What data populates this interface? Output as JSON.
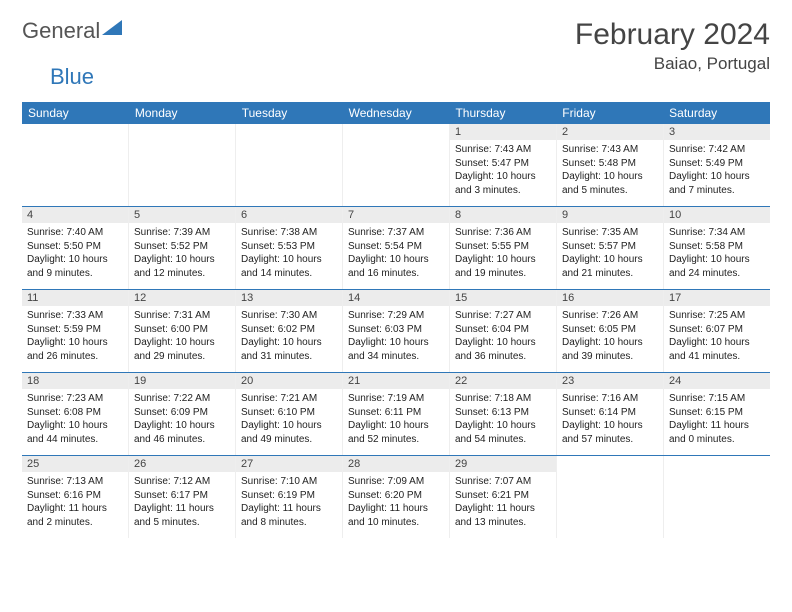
{
  "logo": {
    "text1": "General",
    "text2": "Blue",
    "brand_color": "#2f77b8"
  },
  "title": "February 2024",
  "location": "Baiao, Portugal",
  "day_names": [
    "Sunday",
    "Monday",
    "Tuesday",
    "Wednesday",
    "Thursday",
    "Friday",
    "Saturday"
  ],
  "colors": {
    "header_bg": "#2f77b8",
    "daynum_bg": "#ececec",
    "week_border": "#2f77b8"
  },
  "weeks": [
    [
      {
        "empty": true
      },
      {
        "empty": true
      },
      {
        "empty": true
      },
      {
        "empty": true
      },
      {
        "day": "1",
        "sunrise": "Sunrise: 7:43 AM",
        "sunset": "Sunset: 5:47 PM",
        "daylight": "Daylight: 10 hours and 3 minutes."
      },
      {
        "day": "2",
        "sunrise": "Sunrise: 7:43 AM",
        "sunset": "Sunset: 5:48 PM",
        "daylight": "Daylight: 10 hours and 5 minutes."
      },
      {
        "day": "3",
        "sunrise": "Sunrise: 7:42 AM",
        "sunset": "Sunset: 5:49 PM",
        "daylight": "Daylight: 10 hours and 7 minutes."
      }
    ],
    [
      {
        "day": "4",
        "sunrise": "Sunrise: 7:40 AM",
        "sunset": "Sunset: 5:50 PM",
        "daylight": "Daylight: 10 hours and 9 minutes."
      },
      {
        "day": "5",
        "sunrise": "Sunrise: 7:39 AM",
        "sunset": "Sunset: 5:52 PM",
        "daylight": "Daylight: 10 hours and 12 minutes."
      },
      {
        "day": "6",
        "sunrise": "Sunrise: 7:38 AM",
        "sunset": "Sunset: 5:53 PM",
        "daylight": "Daylight: 10 hours and 14 minutes."
      },
      {
        "day": "7",
        "sunrise": "Sunrise: 7:37 AM",
        "sunset": "Sunset: 5:54 PM",
        "daylight": "Daylight: 10 hours and 16 minutes."
      },
      {
        "day": "8",
        "sunrise": "Sunrise: 7:36 AM",
        "sunset": "Sunset: 5:55 PM",
        "daylight": "Daylight: 10 hours and 19 minutes."
      },
      {
        "day": "9",
        "sunrise": "Sunrise: 7:35 AM",
        "sunset": "Sunset: 5:57 PM",
        "daylight": "Daylight: 10 hours and 21 minutes."
      },
      {
        "day": "10",
        "sunrise": "Sunrise: 7:34 AM",
        "sunset": "Sunset: 5:58 PM",
        "daylight": "Daylight: 10 hours and 24 minutes."
      }
    ],
    [
      {
        "day": "11",
        "sunrise": "Sunrise: 7:33 AM",
        "sunset": "Sunset: 5:59 PM",
        "daylight": "Daylight: 10 hours and 26 minutes."
      },
      {
        "day": "12",
        "sunrise": "Sunrise: 7:31 AM",
        "sunset": "Sunset: 6:00 PM",
        "daylight": "Daylight: 10 hours and 29 minutes."
      },
      {
        "day": "13",
        "sunrise": "Sunrise: 7:30 AM",
        "sunset": "Sunset: 6:02 PM",
        "daylight": "Daylight: 10 hours and 31 minutes."
      },
      {
        "day": "14",
        "sunrise": "Sunrise: 7:29 AM",
        "sunset": "Sunset: 6:03 PM",
        "daylight": "Daylight: 10 hours and 34 minutes."
      },
      {
        "day": "15",
        "sunrise": "Sunrise: 7:27 AM",
        "sunset": "Sunset: 6:04 PM",
        "daylight": "Daylight: 10 hours and 36 minutes."
      },
      {
        "day": "16",
        "sunrise": "Sunrise: 7:26 AM",
        "sunset": "Sunset: 6:05 PM",
        "daylight": "Daylight: 10 hours and 39 minutes."
      },
      {
        "day": "17",
        "sunrise": "Sunrise: 7:25 AM",
        "sunset": "Sunset: 6:07 PM",
        "daylight": "Daylight: 10 hours and 41 minutes."
      }
    ],
    [
      {
        "day": "18",
        "sunrise": "Sunrise: 7:23 AM",
        "sunset": "Sunset: 6:08 PM",
        "daylight": "Daylight: 10 hours and 44 minutes."
      },
      {
        "day": "19",
        "sunrise": "Sunrise: 7:22 AM",
        "sunset": "Sunset: 6:09 PM",
        "daylight": "Daylight: 10 hours and 46 minutes."
      },
      {
        "day": "20",
        "sunrise": "Sunrise: 7:21 AM",
        "sunset": "Sunset: 6:10 PM",
        "daylight": "Daylight: 10 hours and 49 minutes."
      },
      {
        "day": "21",
        "sunrise": "Sunrise: 7:19 AM",
        "sunset": "Sunset: 6:11 PM",
        "daylight": "Daylight: 10 hours and 52 minutes."
      },
      {
        "day": "22",
        "sunrise": "Sunrise: 7:18 AM",
        "sunset": "Sunset: 6:13 PM",
        "daylight": "Daylight: 10 hours and 54 minutes."
      },
      {
        "day": "23",
        "sunrise": "Sunrise: 7:16 AM",
        "sunset": "Sunset: 6:14 PM",
        "daylight": "Daylight: 10 hours and 57 minutes."
      },
      {
        "day": "24",
        "sunrise": "Sunrise: 7:15 AM",
        "sunset": "Sunset: 6:15 PM",
        "daylight": "Daylight: 11 hours and 0 minutes."
      }
    ],
    [
      {
        "day": "25",
        "sunrise": "Sunrise: 7:13 AM",
        "sunset": "Sunset: 6:16 PM",
        "daylight": "Daylight: 11 hours and 2 minutes."
      },
      {
        "day": "26",
        "sunrise": "Sunrise: 7:12 AM",
        "sunset": "Sunset: 6:17 PM",
        "daylight": "Daylight: 11 hours and 5 minutes."
      },
      {
        "day": "27",
        "sunrise": "Sunrise: 7:10 AM",
        "sunset": "Sunset: 6:19 PM",
        "daylight": "Daylight: 11 hours and 8 minutes."
      },
      {
        "day": "28",
        "sunrise": "Sunrise: 7:09 AM",
        "sunset": "Sunset: 6:20 PM",
        "daylight": "Daylight: 11 hours and 10 minutes."
      },
      {
        "day": "29",
        "sunrise": "Sunrise: 7:07 AM",
        "sunset": "Sunset: 6:21 PM",
        "daylight": "Daylight: 11 hours and 13 minutes."
      },
      {
        "empty": true
      },
      {
        "empty": true
      }
    ]
  ]
}
